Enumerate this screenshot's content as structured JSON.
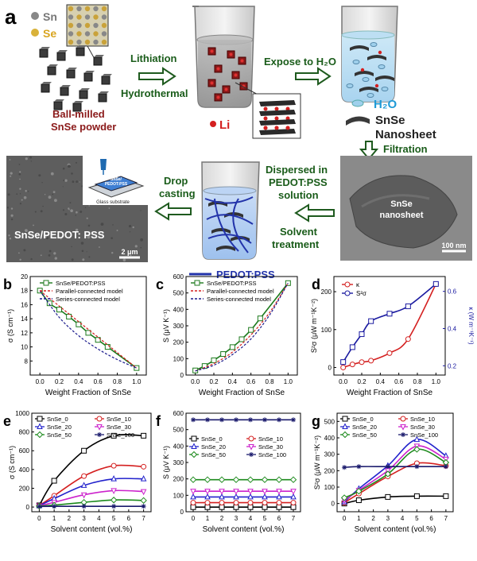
{
  "schematic": {
    "panel_letter": "a",
    "sn_label": "Sn",
    "se_label": "Se",
    "ball_milled_label": [
      "Ball-milled",
      "SnSe powder"
    ],
    "lithiation_label": "Lithiation",
    "hydrothermal_label": "Hydrothermal",
    "li_label": "Li",
    "expose_label": "Expose to H₂O",
    "h2o_label": "H₂O",
    "snse_label": "SnSe",
    "nanosheet_label": "Nanosheet",
    "filtration_label": "Filtration",
    "dispersed_label": [
      "Dispersed in",
      "PEDOT:PSS",
      "solution"
    ],
    "solvent_treatment_label": [
      "Solvent",
      "treatment"
    ],
    "drop_casting_label": [
      "Drop",
      "casting"
    ],
    "pedot_legend_label": "PEDOT:PSS",
    "film_label": "SnSe/PEDOT: PSS",
    "substrate_label": "Glass substrate",
    "film_box_label": [
      "SnSe/",
      "PEDOT:PSS"
    ],
    "sem_scale": "2 μm",
    "tem_label": [
      "SnSe",
      "nanosheet"
    ],
    "tem_scale": "100 nm",
    "colors": {
      "arrow": "#1e5a1e",
      "green_text": "#1a5c1a",
      "red_text": "#8b1a1a",
      "li_red": "#d42020",
      "h2o_blue": "#1f9ad6",
      "pedot_blue": "#2233aa"
    }
  },
  "chart_data": [
    {
      "panel": "b",
      "type": "line",
      "xlabel": "Weight Fraction of SnSe",
      "ylabel": "σ (S cm⁻¹)",
      "xlim": [
        -0.1,
        1.1
      ],
      "ylim": [
        6,
        20
      ],
      "xticks": [
        "0.0",
        "0.2",
        "0.4",
        "0.6",
        "0.8",
        "1.0"
      ],
      "yticks": [
        "8",
        "10",
        "12",
        "14",
        "16",
        "18",
        "20"
      ],
      "legend": "top-right",
      "series": [
        {
          "name": "SnSe/PEDOT:PSS",
          "color": "#1c7a1c",
          "marker": "square",
          "x": [
            0,
            0.1,
            0.2,
            0.3,
            0.4,
            0.5,
            0.6,
            0.7,
            1.0
          ],
          "y": [
            18,
            16.2,
            15.3,
            14.3,
            13.2,
            12.0,
            11.0,
            10.0,
            7.0
          ]
        },
        {
          "name": "Parallel-connected model",
          "color": "#d42020",
          "dash": true,
          "x": [
            0,
            0.2,
            0.4,
            0.6,
            0.8,
            1.0
          ],
          "y": [
            18,
            15.8,
            13.6,
            11.4,
            9.2,
            7.0
          ]
        },
        {
          "name": "Series-connected model",
          "color": "#1a1a8c",
          "dash": true,
          "x": [
            0,
            0.2,
            0.4,
            0.6,
            0.8,
            1.0
          ],
          "y": [
            18,
            14.2,
            11.6,
            9.7,
            8.2,
            7.0
          ]
        }
      ]
    },
    {
      "panel": "c",
      "type": "line",
      "xlabel": "Weight Fraction of SnSe",
      "ylabel": "S (μV K⁻¹)",
      "xlim": [
        -0.1,
        1.1
      ],
      "ylim": [
        0,
        600
      ],
      "xticks": [
        "0.0",
        "0.2",
        "0.4",
        "0.6",
        "0.8",
        "1.0"
      ],
      "yticks": [
        "0",
        "100",
        "200",
        "300",
        "400",
        "500",
        "600"
      ],
      "legend": "top-left",
      "series": [
        {
          "name": "SnSe/PEDOT:PSS",
          "color": "#1c7a1c",
          "marker": "square",
          "x": [
            0,
            0.1,
            0.2,
            0.3,
            0.4,
            0.5,
            0.6,
            0.7,
            1.0
          ],
          "y": [
            28,
            55,
            90,
            128,
            170,
            218,
            275,
            345,
            560
          ]
        },
        {
          "name": "Parallel-connected model",
          "color": "#d42020",
          "dash": true,
          "x": [
            0,
            0.2,
            0.4,
            0.6,
            0.8,
            1.0
          ],
          "y": [
            25,
            70,
            140,
            245,
            380,
            560
          ]
        },
        {
          "name": "Series-connected model",
          "color": "#1a1a8c",
          "dash": true,
          "x": [
            0,
            0.2,
            0.4,
            0.6,
            0.8,
            1.0
          ],
          "y": [
            25,
            60,
            125,
            220,
            365,
            560
          ]
        }
      ]
    },
    {
      "panel": "d",
      "type": "line",
      "xlabel": "Weight Fraction of SnSe",
      "ylabel": "S²σ (μW m⁻¹K⁻²)",
      "ylabel_right": "κ (W m⁻¹K⁻¹)",
      "xlim": [
        -0.1,
        1.1
      ],
      "ylim": [
        -20,
        240
      ],
      "ylim_right": [
        0.15,
        0.68
      ],
      "xticks": [
        "0.0",
        "0.2",
        "0.4",
        "0.6",
        "0.8",
        "1.0"
      ],
      "yticks": [
        "0",
        "100",
        "200"
      ],
      "yticks_right": [
        "0.2",
        "0.4",
        "0.6"
      ],
      "legend": "top-left",
      "series": [
        {
          "name": "κ",
          "color": "#d42020",
          "axis": "left",
          "x": [
            0,
            0.1,
            0.2,
            0.3,
            0.5,
            0.7,
            1.0
          ],
          "y": [
            0,
            8,
            14,
            18,
            38,
            75,
            220
          ]
        },
        {
          "name": "S²σ",
          "color": "#1a1aa0",
          "axis": "right",
          "x": [
            0,
            0.1,
            0.2,
            0.3,
            0.5,
            0.7,
            1.0
          ],
          "y": [
            0.22,
            0.3,
            0.37,
            0.44,
            0.48,
            0.52,
            0.64
          ]
        }
      ]
    },
    {
      "panel": "e",
      "type": "line",
      "xlabel": "Solvent content (vol.%)",
      "ylabel": "σ (S cm⁻¹)",
      "xlim": [
        -0.5,
        7.5
      ],
      "ylim": [
        -50,
        1000
      ],
      "xticks": [
        "0",
        "1",
        "2",
        "3",
        "4",
        "5",
        "6",
        "7"
      ],
      "yticks": [
        "0",
        "200",
        "400",
        "600",
        "800",
        "1000"
      ],
      "legend": "top-left",
      "x": [
        0,
        1,
        3,
        5,
        7
      ],
      "series": [
        {
          "name": "SnSe_0",
          "color": "#000000",
          "marker": "square",
          "values": [
            18,
            280,
            600,
            760,
            760
          ]
        },
        {
          "name": "SnSe_10",
          "color": "#d42020",
          "marker": "circle",
          "values": [
            16,
            120,
            330,
            440,
            430
          ]
        },
        {
          "name": "SnSe_20",
          "color": "#2222cc",
          "marker": "triangle",
          "values": [
            14,
            90,
            230,
            300,
            300
          ]
        },
        {
          "name": "SnSe_30",
          "color": "#cc22cc",
          "marker": "triangle-down",
          "values": [
            12,
            50,
            130,
            175,
            165
          ]
        },
        {
          "name": "SnSe_50",
          "color": "#1c8a1c",
          "marker": "diamond",
          "values": [
            10,
            20,
            50,
            75,
            70
          ]
        },
        {
          "name": "SnSe_100",
          "color": "#1a1a6c",
          "marker": "star",
          "values": [
            7,
            8,
            8,
            8,
            8
          ]
        }
      ]
    },
    {
      "panel": "f",
      "type": "line",
      "xlabel": "Solvent content (vol.%)",
      "ylabel": "S (μV K⁻¹)",
      "xlim": [
        -0.5,
        7.5
      ],
      "ylim": [
        0,
        600
      ],
      "xticks": [
        "0",
        "1",
        "2",
        "3",
        "4",
        "5",
        "6",
        "7"
      ],
      "yticks": [
        "0",
        "100",
        "200",
        "300",
        "400",
        "500",
        "600"
      ],
      "legend": "center-left",
      "x": [
        0,
        1,
        2,
        3,
        4,
        5,
        6,
        7
      ],
      "series": [
        {
          "name": "SnSe_0",
          "color": "#000000",
          "marker": "square",
          "values": [
            28,
            28,
            28,
            28,
            28,
            28,
            28,
            28
          ]
        },
        {
          "name": "SnSe_10",
          "color": "#d42020",
          "marker": "circle",
          "values": [
            55,
            55,
            55,
            55,
            55,
            55,
            55,
            55
          ]
        },
        {
          "name": "SnSe_20",
          "color": "#2222cc",
          "marker": "triangle",
          "values": [
            90,
            90,
            90,
            90,
            90,
            90,
            90,
            90
          ]
        },
        {
          "name": "SnSe_30",
          "color": "#cc22cc",
          "marker": "triangle-down",
          "values": [
            125,
            125,
            125,
            125,
            125,
            125,
            125,
            125
          ]
        },
        {
          "name": "SnSe_50",
          "color": "#1c8a1c",
          "marker": "diamond",
          "values": [
            195,
            195,
            195,
            195,
            195,
            195,
            195,
            195
          ]
        },
        {
          "name": "SnSe_100",
          "color": "#1a1a6c",
          "marker": "star",
          "values": [
            560,
            560,
            560,
            560,
            560,
            560,
            560,
            560
          ]
        }
      ]
    },
    {
      "panel": "g",
      "type": "line",
      "xlabel": "Solvent content (vol.%)",
      "ylabel": "S²σ (μW m⁻¹K⁻²)",
      "xlim": [
        -0.5,
        7.5
      ],
      "ylim": [
        -50,
        550
      ],
      "xticks": [
        "0",
        "1",
        "2",
        "3",
        "4",
        "5",
        "6",
        "7"
      ],
      "yticks": [
        "0",
        "100",
        "200",
        "300",
        "400",
        "500"
      ],
      "legend": "top-left",
      "x": [
        0,
        1,
        3,
        5,
        7
      ],
      "series": [
        {
          "name": "SnSe_0",
          "color": "#000000",
          "marker": "square",
          "values": [
            0,
            20,
            40,
            45,
            45
          ]
        },
        {
          "name": "SnSe_10",
          "color": "#d42020",
          "marker": "circle",
          "values": [
            5,
            60,
            165,
            245,
            230
          ]
        },
        {
          "name": "SnSe_20",
          "color": "#2222cc",
          "marker": "triangle",
          "values": [
            10,
            90,
            230,
            390,
            290
          ]
        },
        {
          "name": "SnSe_30",
          "color": "#cc22cc",
          "marker": "triangle-down",
          "values": [
            20,
            80,
            200,
            350,
            270
          ]
        },
        {
          "name": "SnSe_50",
          "color": "#1c8a1c",
          "marker": "diamond",
          "values": [
            35,
            75,
            180,
            330,
            250
          ]
        },
        {
          "name": "SnSe_100",
          "color": "#1a1a6c",
          "marker": "star",
          "values": [
            220,
            225,
            225,
            225,
            225
          ]
        }
      ]
    }
  ]
}
